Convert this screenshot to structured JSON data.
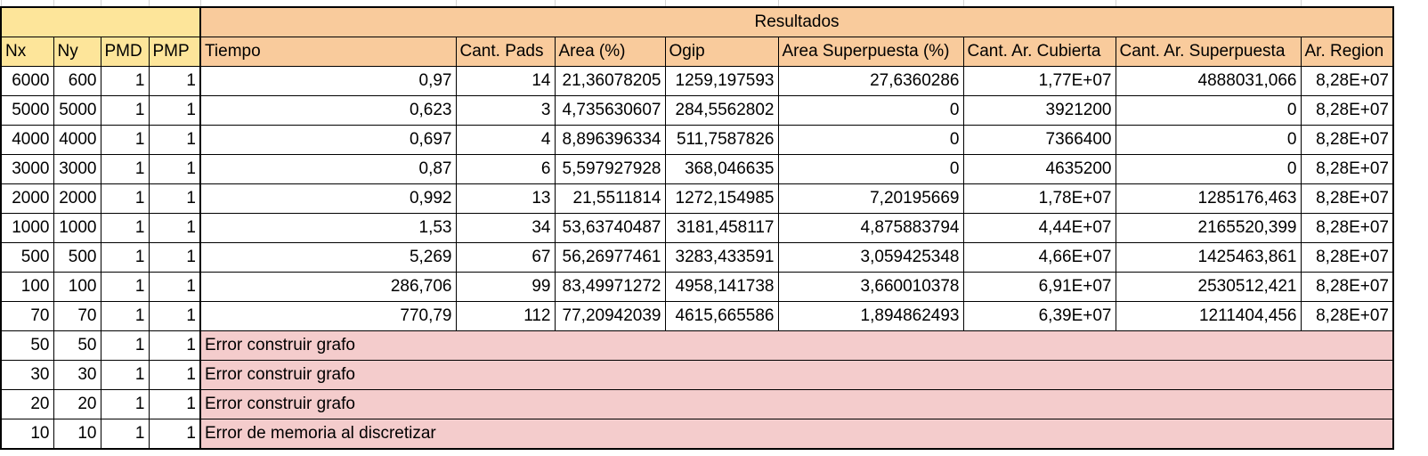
{
  "colors": {
    "header_yellow": "#fde59a",
    "header_peach": "#f9cb9c",
    "error_pink": "#f4cccc",
    "gridline": "#d4d4d4"
  },
  "results_title": "Resultados",
  "headers": [
    "Nx",
    "Ny",
    "PMD",
    "PMP",
    "Tiempo",
    "Cant. Pads",
    "Area (%)",
    "Ogip",
    "Area Superpuesta (%)",
    "Cant. Ar. Cubierta",
    "Cant. Ar. Superpuesta",
    "Ar. Region"
  ],
  "rows": [
    [
      "6000",
      "600",
      "1",
      "1",
      "0,97",
      "14",
      "21,36078205",
      "1259,197593",
      "27,6360286",
      "1,77E+07",
      "4888031,066",
      "8,28E+07"
    ],
    [
      "5000",
      "5000",
      "1",
      "1",
      "0,623",
      "3",
      "4,735630607",
      "284,5562802",
      "0",
      "3921200",
      "0",
      "8,28E+07"
    ],
    [
      "4000",
      "4000",
      "1",
      "1",
      "0,697",
      "4",
      "8,896396334",
      "511,7587826",
      "0",
      "7366400",
      "0",
      "8,28E+07"
    ],
    [
      "3000",
      "3000",
      "1",
      "1",
      "0,87",
      "6",
      "5,597927928",
      "368,046635",
      "0",
      "4635200",
      "0",
      "8,28E+07"
    ],
    [
      "2000",
      "2000",
      "1",
      "1",
      "0,992",
      "13",
      "21,5511814",
      "1272,154985",
      "7,20195669",
      "1,78E+07",
      "1285176,463",
      "8,28E+07"
    ],
    [
      "1000",
      "1000",
      "1",
      "1",
      "1,53",
      "34",
      "53,63740487",
      "3181,458117",
      "4,875883794",
      "4,44E+07",
      "2165520,399",
      "8,28E+07"
    ],
    [
      "500",
      "500",
      "1",
      "1",
      "5,269",
      "67",
      "56,26977461",
      "3283,433591",
      "3,059425348",
      "4,66E+07",
      "1425463,861",
      "8,28E+07"
    ],
    [
      "100",
      "100",
      "1",
      "1",
      "286,706",
      "99",
      "83,49971272",
      "4958,141738",
      "3,660010378",
      "6,91E+07",
      "2530512,421",
      "8,28E+07"
    ],
    [
      "70",
      "70",
      "1",
      "1",
      "770,79",
      "112",
      "77,20942039",
      "4615,665586",
      "1,894862493",
      "6,39E+07",
      "1211404,456",
      "8,28E+07"
    ]
  ],
  "error_rows": [
    {
      "nx": "50",
      "ny": "50",
      "pmd": "1",
      "pmp": "1",
      "message": "Error construir grafo"
    },
    {
      "nx": "30",
      "ny": "30",
      "pmd": "1",
      "pmp": "1",
      "message": "Error construir grafo"
    },
    {
      "nx": "20",
      "ny": "20",
      "pmd": "1",
      "pmp": "1",
      "message": "Error construir grafo"
    },
    {
      "nx": "10",
      "ny": "10",
      "pmd": "1",
      "pmp": "1",
      "message": "Error de memoria al discretizar"
    }
  ]
}
